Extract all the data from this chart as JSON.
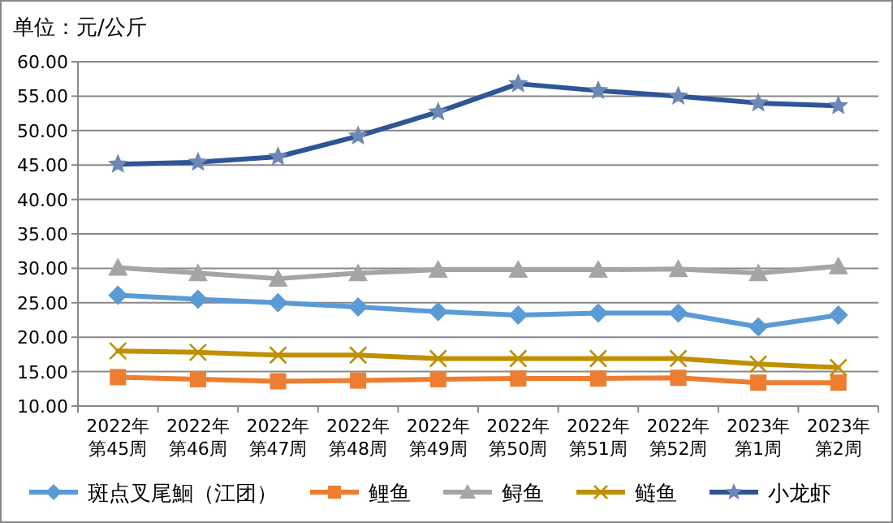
{
  "chart_data": {
    "type": "line",
    "title": "单位：元/公斤",
    "categories": [
      "2022年第45周",
      "2022年第46周",
      "2022年第47周",
      "2022年第48周",
      "2022年第49周",
      "2022年第50周",
      "2022年第51周",
      "2022年第52周",
      "2023年第1周",
      "2023年第2周"
    ],
    "series": [
      {
        "name": "斑点叉尾鮰（江团）",
        "color": "#5b9bd5",
        "marker": "diamond",
        "values": [
          26.1,
          25.5,
          25.0,
          24.4,
          23.7,
          23.2,
          23.5,
          23.5,
          21.5,
          23.2
        ]
      },
      {
        "name": "鲤鱼",
        "color": "#ed7d31",
        "marker": "square",
        "values": [
          14.2,
          13.9,
          13.6,
          13.7,
          13.9,
          14.0,
          14.0,
          14.1,
          13.4,
          13.4
        ]
      },
      {
        "name": "鲟鱼",
        "color": "#a5a5a5",
        "marker": "triangle",
        "values": [
          30.1,
          29.3,
          28.5,
          29.3,
          29.8,
          29.8,
          29.8,
          29.9,
          29.3,
          30.3
        ]
      },
      {
        "name": "鲢鱼",
        "color": "#bf9000",
        "marker": "cross",
        "values": [
          18.0,
          17.8,
          17.4,
          17.4,
          16.9,
          16.9,
          16.9,
          16.9,
          16.1,
          15.6
        ]
      },
      {
        "name": "小龙虾",
        "color": "#2f5597",
        "marker": "star",
        "values": [
          45.1,
          45.4,
          46.2,
          49.2,
          52.7,
          56.8,
          55.8,
          55.0,
          54.0,
          53.6
        ]
      }
    ],
    "ylim": [
      10,
      60
    ],
    "yticks": [
      {
        "value": 10,
        "label": "10.00"
      },
      {
        "value": 15,
        "label": "15.00"
      },
      {
        "value": 20,
        "label": "20.00"
      },
      {
        "value": 25,
        "label": "25.00"
      },
      {
        "value": 30,
        "label": "30.00"
      },
      {
        "value": 35,
        "label": "35.00"
      },
      {
        "value": 40,
        "label": "40.00"
      },
      {
        "value": 45,
        "label": "45.00"
      },
      {
        "value": 50,
        "label": "50.00"
      },
      {
        "value": 55,
        "label": "55.00"
      },
      {
        "value": 60,
        "label": "60.00"
      }
    ],
    "grid": "y",
    "legend": "bottom",
    "line_style": "solid"
  }
}
